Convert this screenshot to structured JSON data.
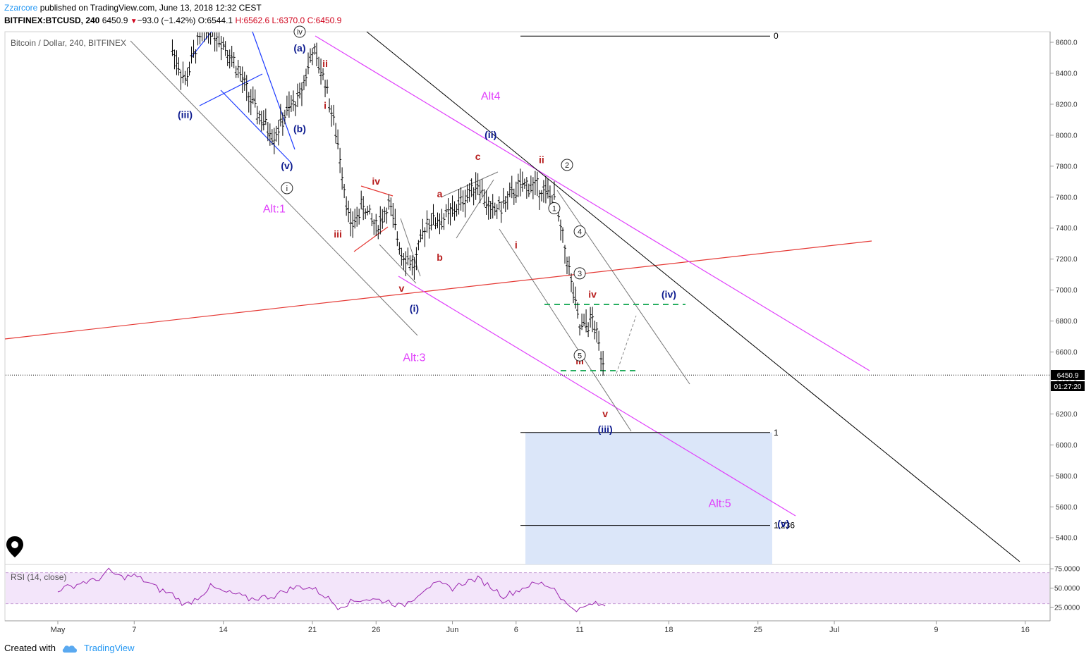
{
  "header": {
    "author": "Zzarcore",
    "published": "published on TradingView.com, June 13, 2018 12:32 CEST",
    "symbol": "BITFINEX:BTCUSD, 240",
    "last": "6450.9",
    "change": "−93.0 (−1.42%)",
    "open": "O:6544.1",
    "high": "H:6562.6",
    "low": "L:6370.0",
    "close": "C:6450.9"
  },
  "legend": {
    "symbol_title": "Bitcoin / Dollar, 240, BITFINEX",
    "rsi_title": "RSI (14, close)"
  },
  "footer": {
    "created_with": "Created with",
    "brand": "TradingView"
  },
  "price_badge": {
    "price": "6450.9",
    "countdown": "01:27:20"
  },
  "colors": {
    "bars": "#000000",
    "wave_red": "#b71c1c",
    "wave_blue": "#0d1b8f",
    "alt_magenta": "#e040fb",
    "trend_red": "#e53935",
    "fib_green": "#27ae60",
    "target_box": "#dbe6f9",
    "rsi_band": "#f3e5fa",
    "rsi_line": "#9c27b0"
  },
  "chart_data": [
    {
      "type": "candlestick",
      "title": "Bitcoin / Dollar, 240, BITFINEX",
      "y_axis": {
        "ticks": [
          5400,
          5600,
          5800,
          6000,
          6200,
          6400,
          6600,
          6800,
          7000,
          7200,
          7400,
          7600,
          7800,
          8000,
          8200,
          8400,
          8600
        ],
        "tick_labels": [
          "5400.0",
          "5600.0",
          "5800.0",
          "6000.0",
          "6200.0",
          "6400.0",
          "6600.0",
          "6800.0",
          "7000.0",
          "7200.0",
          "7400.0",
          "7600.0",
          "7800.0",
          "8000.0",
          "8200.0",
          "8400.0",
          "8600.0"
        ],
        "range": [
          5220,
          8680
        ],
        "position": "right"
      },
      "x_axis": {
        "range": [
          "2018-05-01",
          "2018-07-17"
        ],
        "ticks": [
          {
            "date": "2018-05-01",
            "label": "May"
          },
          {
            "date": "2018-05-07",
            "label": "7"
          },
          {
            "date": "2018-05-14",
            "label": "14"
          },
          {
            "date": "2018-05-21",
            "label": "21"
          },
          {
            "date": "2018-05-26",
            "label": "26"
          },
          {
            "date": "2018-06-01",
            "label": "Jun"
          },
          {
            "date": "2018-06-06",
            "label": "6"
          },
          {
            "date": "2018-06-11",
            "label": "11"
          },
          {
            "date": "2018-06-18",
            "label": "18"
          },
          {
            "date": "2018-06-25",
            "label": "25"
          },
          {
            "date": "2018-07-01",
            "label": "Jul"
          },
          {
            "date": "2018-07-09",
            "label": "9"
          },
          {
            "date": "2018-07-16",
            "label": "16"
          }
        ]
      },
      "price_path": [
        [
          "2018-05-10",
          8550
        ],
        [
          "2018-05-11",
          8350
        ],
        [
          "2018-05-12",
          8600
        ],
        [
          "2018-05-13",
          8700
        ],
        [
          "2018-05-14",
          8600
        ],
        [
          "2018-05-15",
          8450
        ],
        [
          "2018-05-16",
          8250
        ],
        [
          "2018-05-17",
          8100
        ],
        [
          "2018-05-18",
          8000
        ],
        [
          "2018-05-19",
          8150
        ],
        [
          "2018-05-20",
          8250
        ],
        [
          "2018-05-21",
          8550
        ],
        [
          "2018-05-22",
          8350
        ],
        [
          "2018-05-23",
          7950
        ],
        [
          "2018-05-24",
          7400
        ],
        [
          "2018-05-25",
          7550
        ],
        [
          "2018-05-26",
          7400
        ],
        [
          "2018-05-27",
          7550
        ],
        [
          "2018-05-28",
          7250
        ],
        [
          "2018-05-29",
          7150
        ],
        [
          "2018-05-30",
          7450
        ],
        [
          "2018-05-31",
          7450
        ],
        [
          "2018-06-01",
          7500
        ],
        [
          "2018-06-02",
          7600
        ],
        [
          "2018-06-03",
          7700
        ],
        [
          "2018-06-04",
          7500
        ],
        [
          "2018-06-05",
          7550
        ],
        [
          "2018-06-06",
          7650
        ],
        [
          "2018-06-07",
          7680
        ],
        [
          "2018-06-08",
          7650
        ],
        [
          "2018-06-09",
          7580
        ],
        [
          "2018-06-10",
          7200
        ],
        [
          "2018-06-11",
          6750
        ],
        [
          "2018-06-12",
          6800
        ],
        [
          "2018-06-13",
          6500
        ]
      ],
      "last_price": 6450.9,
      "horizontal_levels": [
        {
          "label": "0",
          "price": 8640
        },
        {
          "label": "1",
          "price": 6080
        },
        {
          "label": "1.236",
          "price": 5480
        }
      ],
      "annotations": [
        {
          "text": "Alt:1",
          "date": "2018-05-18",
          "price": 7500,
          "color": "magenta"
        },
        {
          "text": "Alt:3",
          "date": "2018-05-29",
          "price": 6540,
          "color": "magenta"
        },
        {
          "text": "Alt4",
          "date": "2018-06-04",
          "price": 8230,
          "color": "magenta"
        },
        {
          "text": "Alt:5",
          "date": "2018-06-22",
          "price": 5600,
          "color": "magenta"
        },
        {
          "text": "(iii)",
          "date": "2018-05-11",
          "price": 8110,
          "color": "blue"
        },
        {
          "text": "(a)",
          "date": "2018-05-20",
          "price": 8540,
          "color": "blue"
        },
        {
          "text": "(b)",
          "date": "2018-05-20",
          "price": 8020,
          "color": "blue"
        },
        {
          "text": "(v)",
          "date": "2018-05-19",
          "price": 7780,
          "color": "blue"
        },
        {
          "text": "(i)",
          "date": "2018-05-29",
          "price": 6860,
          "color": "blue"
        },
        {
          "text": "(ii)",
          "date": "2018-06-04",
          "price": 7980,
          "color": "blue"
        },
        {
          "text": "(iv)",
          "date": "2018-06-18",
          "price": 6950,
          "color": "blue"
        },
        {
          "text": "(iii)",
          "date": "2018-06-13",
          "price": 6080,
          "color": "blue"
        },
        {
          "text": "(v)",
          "date": "2018-06-27",
          "price": 5470,
          "color": "blue"
        },
        {
          "text": "iv",
          "date": "2018-05-20",
          "price": 8650,
          "color": "circled"
        },
        {
          "text": "i",
          "date": "2018-05-19",
          "price": 7640,
          "color": "circled"
        },
        {
          "text": "ii",
          "date": "2018-05-22",
          "price": 8440,
          "color": "red"
        },
        {
          "text": "i",
          "date": "2018-05-22",
          "price": 8170,
          "color": "red"
        },
        {
          "text": "iii",
          "date": "2018-05-23",
          "price": 7340,
          "color": "red"
        },
        {
          "text": "iv",
          "date": "2018-05-26",
          "price": 7680,
          "color": "red"
        },
        {
          "text": "v",
          "date": "2018-05-28",
          "price": 6990,
          "color": "red"
        },
        {
          "text": "a",
          "date": "2018-05-31",
          "price": 7600,
          "color": "red"
        },
        {
          "text": "b",
          "date": "2018-05-31",
          "price": 7190,
          "color": "red"
        },
        {
          "text": "c",
          "date": "2018-06-03",
          "price": 7840,
          "color": "red"
        },
        {
          "text": "i",
          "date": "2018-06-06",
          "price": 7270,
          "color": "red"
        },
        {
          "text": "ii",
          "date": "2018-06-08",
          "price": 7820,
          "color": "red"
        },
        {
          "text": "iv",
          "date": "2018-06-12",
          "price": 6950,
          "color": "red"
        },
        {
          "text": "iii",
          "date": "2018-06-11",
          "price": 6520,
          "color": "red"
        },
        {
          "text": "v",
          "date": "2018-06-13",
          "price": 6180,
          "color": "red"
        },
        {
          "text": "1",
          "date": "2018-06-09",
          "price": 7510,
          "color": "circled"
        },
        {
          "text": "2",
          "date": "2018-06-10",
          "price": 7790,
          "color": "circled"
        },
        {
          "text": "3",
          "date": "2018-06-11",
          "price": 7090,
          "color": "circled"
        },
        {
          "text": "4",
          "date": "2018-06-11",
          "price": 7360,
          "color": "circled"
        },
        {
          "text": "5",
          "date": "2018-06-11",
          "price": 6560,
          "color": "circled"
        }
      ]
    },
    {
      "type": "line",
      "title": "RSI (14, close)",
      "y_axis": {
        "ticks": [
          25,
          50,
          75
        ],
        "tick_labels": [
          "25.0000",
          "50.0000",
          "75.0000"
        ],
        "range": [
          14,
          79
        ],
        "band": [
          30,
          70
        ]
      },
      "series": [
        {
          "values": [
            [
              "2018-05-01",
              48
            ],
            [
              "2018-05-02",
              52
            ],
            [
              "2018-05-03",
              58
            ],
            [
              "2018-05-04",
              60
            ],
            [
              "2018-05-05",
              72
            ],
            [
              "2018-05-06",
              64
            ],
            [
              "2018-05-07",
              66
            ],
            [
              "2018-05-08",
              58
            ],
            [
              "2018-05-09",
              48
            ],
            [
              "2018-05-10",
              42
            ],
            [
              "2018-05-11",
              28
            ],
            [
              "2018-05-12",
              38
            ],
            [
              "2018-05-13",
              52
            ],
            [
              "2018-05-14",
              45
            ],
            [
              "2018-05-15",
              42
            ],
            [
              "2018-05-16",
              36
            ],
            [
              "2018-05-17",
              38
            ],
            [
              "2018-05-18",
              40
            ],
            [
              "2018-05-19",
              48
            ],
            [
              "2018-05-20",
              52
            ],
            [
              "2018-05-21",
              50
            ],
            [
              "2018-05-22",
              40
            ],
            [
              "2018-05-23",
              26
            ],
            [
              "2018-05-24",
              32
            ],
            [
              "2018-05-25",
              36
            ],
            [
              "2018-05-26",
              35
            ],
            [
              "2018-05-27",
              33
            ],
            [
              "2018-05-28",
              26
            ],
            [
              "2018-05-29",
              38
            ],
            [
              "2018-05-30",
              52
            ],
            [
              "2018-05-31",
              55
            ],
            [
              "2018-06-01",
              50
            ],
            [
              "2018-06-02",
              58
            ],
            [
              "2018-06-03",
              62
            ],
            [
              "2018-06-04",
              52
            ],
            [
              "2018-06-05",
              40
            ],
            [
              "2018-06-06",
              46
            ],
            [
              "2018-06-07",
              54
            ],
            [
              "2018-06-08",
              56
            ],
            [
              "2018-06-09",
              50
            ],
            [
              "2018-06-10",
              28
            ],
            [
              "2018-06-11",
              22
            ],
            [
              "2018-06-12",
              30
            ],
            [
              "2018-06-13",
              27
            ]
          ]
        }
      ]
    }
  ]
}
